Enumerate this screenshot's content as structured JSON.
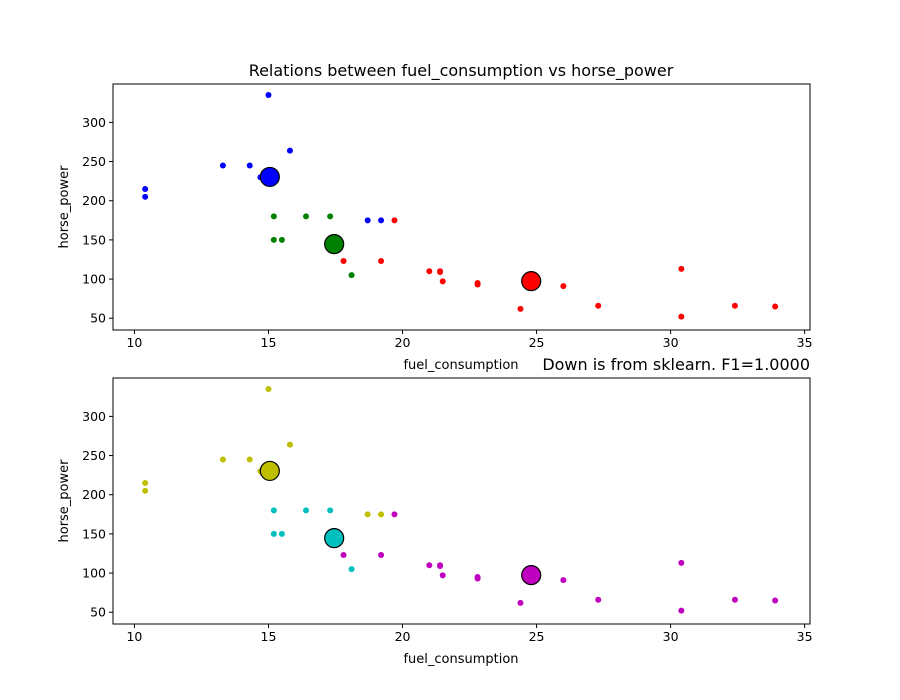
{
  "chart_data": [
    {
      "type": "scatter",
      "title": "Relations between fuel_consumption vs horse_power",
      "xlabel": "fuel_consumption",
      "ylabel": "horse_power",
      "xlim": [
        9.2,
        35.2
      ],
      "ylim": [
        35,
        349
      ],
      "xticks": [
        10,
        15,
        20,
        25,
        30,
        35
      ],
      "yticks": [
        50,
        100,
        150,
        200,
        250,
        300
      ],
      "grid": false,
      "series": [
        {
          "color": "#0000ff",
          "points": [
            [
              15.0,
              335
            ],
            [
              15.8,
              264
            ],
            [
              13.3,
              245
            ],
            [
              14.3,
              245
            ],
            [
              10.4,
              215
            ],
            [
              10.4,
              205
            ],
            [
              14.7,
              230
            ],
            [
              18.7,
              175
            ],
            [
              19.2,
              175
            ]
          ],
          "centroid": [
            15.05,
            230.4
          ]
        },
        {
          "color": "#008000",
          "points": [
            [
              15.2,
              180
            ],
            [
              16.4,
              180
            ],
            [
              17.3,
              180
            ],
            [
              15.2,
              150
            ],
            [
              15.5,
              150
            ],
            [
              18.1,
              105
            ]
          ],
          "centroid": [
            17.45,
            144.6
          ]
        },
        {
          "color": "#ff0000",
          "points": [
            [
              19.7,
              175
            ],
            [
              17.8,
              123
            ],
            [
              19.2,
              123
            ],
            [
              21.0,
              110
            ],
            [
              21.4,
              110
            ],
            [
              21.4,
              109
            ],
            [
              21.5,
              97
            ],
            [
              22.8,
              95
            ],
            [
              22.8,
              93
            ],
            [
              24.4,
              62
            ],
            [
              26.0,
              91
            ],
            [
              27.3,
              66
            ],
            [
              30.4,
              113
            ],
            [
              30.4,
              52
            ],
            [
              32.4,
              66
            ],
            [
              33.9,
              65
            ]
          ],
          "centroid": [
            24.8,
            97.4
          ]
        }
      ]
    },
    {
      "type": "scatter",
      "title": "Down is from sklearn. F1=1.0000",
      "xlabel": "fuel_consumption",
      "ylabel": "horse_power",
      "xlim": [
        9.2,
        35.2
      ],
      "ylim": [
        35,
        349
      ],
      "xticks": [
        10,
        15,
        20,
        25,
        30,
        35
      ],
      "yticks": [
        50,
        100,
        150,
        200,
        250,
        300
      ],
      "grid": false,
      "series": [
        {
          "color": "#bfbf00",
          "points": [
            [
              15.0,
              335
            ],
            [
              15.8,
              264
            ],
            [
              13.3,
              245
            ],
            [
              14.3,
              245
            ],
            [
              10.4,
              215
            ],
            [
              10.4,
              205
            ],
            [
              14.7,
              230
            ],
            [
              18.7,
              175
            ],
            [
              19.2,
              175
            ]
          ],
          "centroid": [
            15.05,
            230.4
          ]
        },
        {
          "color": "#00bfbf",
          "points": [
            [
              15.2,
              180
            ],
            [
              16.4,
              180
            ],
            [
              17.3,
              180
            ],
            [
              15.2,
              150
            ],
            [
              15.5,
              150
            ],
            [
              18.1,
              105
            ]
          ],
          "centroid": [
            17.45,
            144.6
          ]
        },
        {
          "color": "#bf00bf",
          "points": [
            [
              19.7,
              175
            ],
            [
              17.8,
              123
            ],
            [
              19.2,
              123
            ],
            [
              21.0,
              110
            ],
            [
              21.4,
              110
            ],
            [
              21.4,
              109
            ],
            [
              21.5,
              97
            ],
            [
              22.8,
              95
            ],
            [
              22.8,
              93
            ],
            [
              24.4,
              62
            ],
            [
              26.0,
              91
            ],
            [
              27.3,
              66
            ],
            [
              30.4,
              113
            ],
            [
              30.4,
              52
            ],
            [
              32.4,
              66
            ],
            [
              33.9,
              65
            ]
          ],
          "centroid": [
            24.8,
            97.4
          ]
        }
      ]
    }
  ]
}
